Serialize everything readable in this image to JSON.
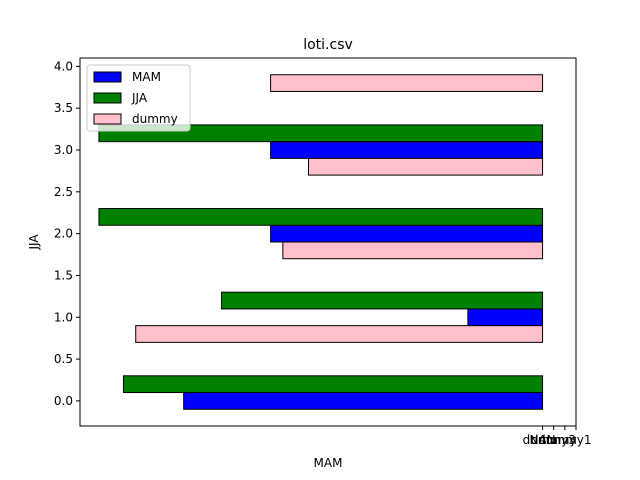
{
  "chart_data": {
    "type": "bar",
    "orientation": "horizontal",
    "title": "loti.csv",
    "xlabel": "MAM",
    "ylabel": "JJA",
    "ylim": [
      -0.3,
      4.1
    ],
    "yticks": [
      0.0,
      0.5,
      1.0,
      1.5,
      2.0,
      2.5,
      3.0,
      3.5,
      4.0
    ],
    "ytick_labels": [
      "0.0",
      "0.5",
      "1.0",
      "1.5",
      "2.0",
      "2.5",
      "3.0",
      "3.5",
      "4.0"
    ],
    "xticks": [
      0,
      1,
      2,
      3
    ],
    "xtick_labels": [
      "NAN",
      "dummy",
      "dummy1",
      "dummy3"
    ],
    "xlim": [
      -41.5,
      3
    ],
    "grid": false,
    "legend_position": "top-left",
    "series": [
      {
        "name": "MAM",
        "color": "#0000ff",
        "bars": [
          {
            "y": 0.0,
            "left": -32.2,
            "right": 0
          },
          {
            "y": 1.0,
            "left": -6.7,
            "right": 0
          },
          {
            "y": 2.0,
            "left": -24.4,
            "right": 0
          },
          {
            "y": 3.0,
            "left": -24.4,
            "right": 0
          }
        ]
      },
      {
        "name": "JJA",
        "color": "#008000",
        "bars": [
          {
            "y": 0.2,
            "left": -37.6,
            "right": 0
          },
          {
            "y": 1.2,
            "left": -28.8,
            "right": 0
          },
          {
            "y": 2.2,
            "left": -39.8,
            "right": 0
          },
          {
            "y": 3.2,
            "left": -39.8,
            "right": 0
          }
        ]
      },
      {
        "name": "dummy",
        "color": "#ffc0cb",
        "bars": [
          {
            "y": 0.8,
            "left": -36.5,
            "right": 0
          },
          {
            "y": 1.8,
            "left": -23.3,
            "right": 0
          },
          {
            "y": 2.8,
            "left": -21.0,
            "right": 0
          },
          {
            "y": 3.8,
            "left": -24.4,
            "right": 0
          }
        ]
      }
    ]
  }
}
